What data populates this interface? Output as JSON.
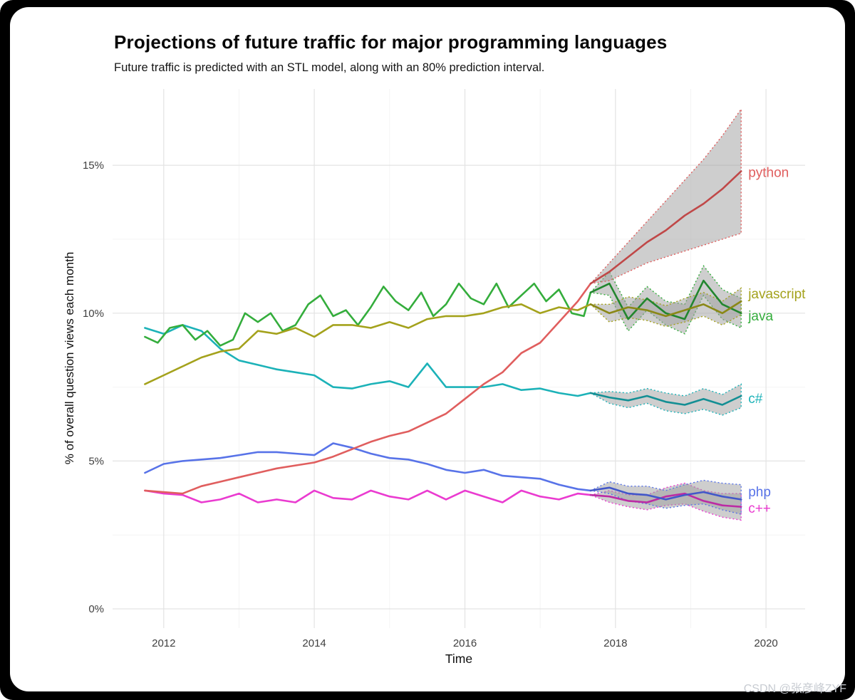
{
  "page": {
    "background": "#000000",
    "card_background": "#ffffff"
  },
  "watermark": {
    "text": "CSDN @张彦峰ZYF"
  },
  "chart_data": {
    "type": "line",
    "title": "Projections of future traffic for major programming languages",
    "subtitle": "Future traffic is predicted with an STL model, along with an 80% prediction interval.",
    "xlabel": "Time",
    "ylabel": "% of overall question views each month",
    "xlim": [
      2011.32,
      2020.52
    ],
    "ylim": [
      -0.65,
      17.58
    ],
    "x_ticks": [
      {
        "v": 2012,
        "label": "2012"
      },
      {
        "v": 2014,
        "label": "2014"
      },
      {
        "v": 2016,
        "label": "2016"
      },
      {
        "v": 2018,
        "label": "2018"
      },
      {
        "v": 2020,
        "label": "2020"
      }
    ],
    "y_ticks": [
      {
        "v": 0,
        "label": "0%"
      },
      {
        "v": 5,
        "label": "5%"
      },
      {
        "v": 10,
        "label": "10%"
      },
      {
        "v": 15,
        "label": "15%"
      }
    ],
    "grid": {
      "show": true,
      "major_color": "#e3e3e3",
      "minor_color": "#f4f4f4",
      "x_minor": [
        2013,
        2015,
        2017,
        2019
      ],
      "y_minor": [
        2.5,
        7.5,
        12.5
      ]
    },
    "ribbon": {
      "fill": "#9e9e9e",
      "opacity": 0.5
    },
    "series": [
      {
        "name": "c#",
        "color": "#1cb2b8",
        "forecast_color": "#138f94",
        "label_y": 7.1,
        "x": [
          2011.75,
          2012,
          2012.25,
          2012.5,
          2012.75,
          2013,
          2013.25,
          2013.5,
          2013.75,
          2014,
          2014.25,
          2014.5,
          2014.75,
          2015,
          2015.25,
          2015.5,
          2015.75,
          2016,
          2016.25,
          2016.5,
          2016.75,
          2017,
          2017.25,
          2017.5,
          2017.67
        ],
        "y": [
          9.5,
          9.3,
          9.6,
          9.4,
          8.8,
          8.4,
          8.25,
          8.1,
          8.0,
          7.9,
          7.5,
          7.45,
          7.6,
          7.7,
          7.5,
          8.3,
          7.5,
          7.5,
          7.5,
          7.6,
          7.4,
          7.45,
          7.3,
          7.2,
          7.3
        ],
        "fx": [
          2017.67,
          2017.92,
          2018.17,
          2018.42,
          2018.67,
          2018.92,
          2019.17,
          2019.42,
          2019.67
        ],
        "fy": [
          7.3,
          7.15,
          7.05,
          7.2,
          7.0,
          6.9,
          7.1,
          6.9,
          7.2
        ],
        "flo": [
          7.3,
          6.95,
          6.8,
          6.95,
          6.7,
          6.6,
          6.75,
          6.55,
          6.8
        ],
        "fhi": [
          7.3,
          7.35,
          7.3,
          7.45,
          7.3,
          7.2,
          7.45,
          7.25,
          7.6
        ]
      },
      {
        "name": "c++",
        "color": "#ea3bd0",
        "forecast_color": "#bc2ba4",
        "label_y": 3.4,
        "x": [
          2011.75,
          2012,
          2012.25,
          2012.5,
          2012.75,
          2013,
          2013.25,
          2013.5,
          2013.75,
          2014,
          2014.25,
          2014.5,
          2014.75,
          2015,
          2015.25,
          2015.5,
          2015.75,
          2016,
          2016.25,
          2016.5,
          2016.75,
          2017,
          2017.25,
          2017.5,
          2017.67
        ],
        "y": [
          4.0,
          3.9,
          3.85,
          3.6,
          3.7,
          3.9,
          3.6,
          3.7,
          3.6,
          4.0,
          3.75,
          3.7,
          4.0,
          3.8,
          3.7,
          4.0,
          3.7,
          4.0,
          3.8,
          3.6,
          4.0,
          3.8,
          3.7,
          3.9,
          3.85
        ],
        "fx": [
          2017.67,
          2017.92,
          2018.17,
          2018.42,
          2018.67,
          2018.92,
          2019.17,
          2019.42,
          2019.67
        ],
        "fy": [
          3.85,
          3.8,
          3.65,
          3.6,
          3.8,
          3.9,
          3.65,
          3.5,
          3.45
        ],
        "flo": [
          3.85,
          3.6,
          3.45,
          3.35,
          3.5,
          3.55,
          3.3,
          3.1,
          3.0
        ],
        "fhi": [
          3.85,
          4.0,
          3.85,
          3.85,
          4.1,
          4.25,
          4.0,
          3.9,
          3.9
        ]
      },
      {
        "name": "java",
        "color": "#34ad3c",
        "forecast_color": "#22862e",
        "label_y": 9.9,
        "x": [
          2011.75,
          2011.92,
          2012.08,
          2012.25,
          2012.42,
          2012.58,
          2012.75,
          2012.92,
          2013.08,
          2013.25,
          2013.42,
          2013.58,
          2013.75,
          2013.92,
          2014.08,
          2014.25,
          2014.42,
          2014.58,
          2014.75,
          2014.92,
          2015.08,
          2015.25,
          2015.42,
          2015.58,
          2015.75,
          2015.92,
          2016.08,
          2016.25,
          2016.42,
          2016.58,
          2016.75,
          2016.92,
          2017.08,
          2017.25,
          2017.42,
          2017.58,
          2017.67
        ],
        "y": [
          9.2,
          9.0,
          9.5,
          9.6,
          9.1,
          9.4,
          8.9,
          9.1,
          10.0,
          9.7,
          10.0,
          9.4,
          9.6,
          10.3,
          10.6,
          9.9,
          10.1,
          9.6,
          10.2,
          10.9,
          10.4,
          10.1,
          10.7,
          9.9,
          10.3,
          11.0,
          10.5,
          10.3,
          11.0,
          10.2,
          10.6,
          11.0,
          10.4,
          10.8,
          10.0,
          9.9,
          10.7
        ],
        "fx": [
          2017.67,
          2017.92,
          2018.17,
          2018.42,
          2018.67,
          2018.92,
          2019.17,
          2019.42,
          2019.67
        ],
        "fy": [
          10.7,
          11.0,
          9.8,
          10.5,
          10.0,
          9.8,
          11.1,
          10.3,
          10.0
        ],
        "flo": [
          10.7,
          10.6,
          9.4,
          10.1,
          9.6,
          9.3,
          10.6,
          9.8,
          9.5
        ],
        "fhi": [
          10.7,
          11.4,
          10.2,
          10.9,
          10.4,
          10.3,
          11.6,
          10.8,
          10.5
        ]
      },
      {
        "name": "javascript",
        "color": "#a4a21c",
        "forecast_color": "#8a8816",
        "label_y": 10.65,
        "x": [
          2011.75,
          2012,
          2012.25,
          2012.5,
          2012.75,
          2013,
          2013.25,
          2013.5,
          2013.75,
          2014,
          2014.25,
          2014.5,
          2014.75,
          2015,
          2015.25,
          2015.5,
          2015.75,
          2016,
          2016.25,
          2016.5,
          2016.75,
          2017,
          2017.25,
          2017.5,
          2017.67
        ],
        "y": [
          7.6,
          7.9,
          8.2,
          8.5,
          8.7,
          8.8,
          9.4,
          9.3,
          9.5,
          9.2,
          9.6,
          9.6,
          9.5,
          9.7,
          9.5,
          9.8,
          9.9,
          9.9,
          10.0,
          10.2,
          10.3,
          10.0,
          10.2,
          10.1,
          10.3
        ],
        "fx": [
          2017.67,
          2017.92,
          2018.17,
          2018.42,
          2018.67,
          2018.92,
          2019.17,
          2019.42,
          2019.67
        ],
        "fy": [
          10.3,
          10.0,
          10.2,
          10.1,
          9.9,
          10.1,
          10.3,
          10.0,
          10.4
        ],
        "flo": [
          10.3,
          9.7,
          9.85,
          9.75,
          9.55,
          9.7,
          9.9,
          9.6,
          9.95
        ],
        "fhi": [
          10.3,
          10.3,
          10.55,
          10.45,
          10.25,
          10.5,
          10.7,
          10.4,
          10.85
        ]
      },
      {
        "name": "php",
        "color": "#5873e8",
        "forecast_color": "#4257c9",
        "label_y": 3.95,
        "x": [
          2011.75,
          2012,
          2012.25,
          2012.5,
          2012.75,
          2013,
          2013.25,
          2013.5,
          2013.75,
          2014,
          2014.25,
          2014.5,
          2014.75,
          2015,
          2015.25,
          2015.5,
          2015.75,
          2016,
          2016.25,
          2016.5,
          2016.75,
          2017,
          2017.25,
          2017.5,
          2017.67
        ],
        "y": [
          4.6,
          4.9,
          5.0,
          5.05,
          5.1,
          5.2,
          5.3,
          5.3,
          5.25,
          5.2,
          5.6,
          5.45,
          5.25,
          5.1,
          5.05,
          4.9,
          4.7,
          4.6,
          4.7,
          4.5,
          4.45,
          4.4,
          4.2,
          4.05,
          4.0
        ],
        "fx": [
          2017.67,
          2017.92,
          2018.17,
          2018.42,
          2018.67,
          2018.92,
          2019.17,
          2019.42,
          2019.67
        ],
        "fy": [
          4.0,
          4.1,
          3.9,
          3.85,
          3.7,
          3.85,
          3.95,
          3.8,
          3.7
        ],
        "flo": [
          4.0,
          3.9,
          3.65,
          3.55,
          3.4,
          3.5,
          3.55,
          3.35,
          3.2
        ],
        "fhi": [
          4.0,
          4.3,
          4.15,
          4.15,
          4.0,
          4.2,
          4.35,
          4.25,
          4.2
        ]
      },
      {
        "name": "python",
        "color": "#e05e5e",
        "forecast_color": "#c04848",
        "label_y": 14.75,
        "x": [
          2011.75,
          2012,
          2012.25,
          2012.5,
          2012.75,
          2013,
          2013.25,
          2013.5,
          2013.75,
          2014,
          2014.25,
          2014.5,
          2014.75,
          2015,
          2015.25,
          2015.5,
          2015.75,
          2016,
          2016.25,
          2016.5,
          2016.75,
          2017,
          2017.25,
          2017.5,
          2017.67
        ],
        "y": [
          4.0,
          3.95,
          3.9,
          4.15,
          4.3,
          4.45,
          4.6,
          4.75,
          4.85,
          4.95,
          5.15,
          5.4,
          5.65,
          5.85,
          6.0,
          6.3,
          6.6,
          7.1,
          7.6,
          8.0,
          8.65,
          9.0,
          9.7,
          10.4,
          11.0
        ],
        "fx": [
          2017.67,
          2017.92,
          2018.17,
          2018.42,
          2018.67,
          2018.92,
          2019.17,
          2019.42,
          2019.67
        ],
        "fy": [
          11.0,
          11.4,
          11.9,
          12.4,
          12.8,
          13.3,
          13.7,
          14.2,
          14.8
        ],
        "flo": [
          11.0,
          11.1,
          11.4,
          11.7,
          11.9,
          12.1,
          12.3,
          12.5,
          12.7
        ],
        "fhi": [
          11.0,
          11.7,
          12.4,
          13.1,
          13.8,
          14.5,
          15.2,
          16.0,
          16.9
        ]
      }
    ]
  }
}
